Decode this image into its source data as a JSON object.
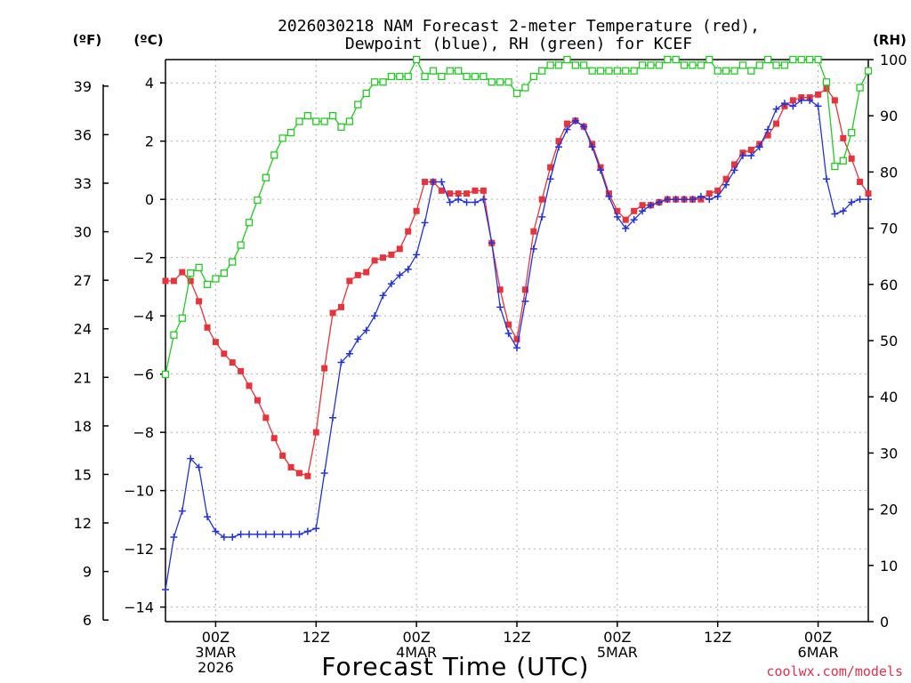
{
  "chart_data": {
    "type": "line",
    "title_lines": [
      "2026030218 NAM Forecast 2-meter Temperature (red),",
      "Dewpoint (blue), RH (green) for KCEF"
    ],
    "units": {
      "fahrenheit": "(ºF)",
      "celsius": "(ºC)",
      "rh": "(RH)"
    },
    "xlabel": "Forecast Time (UTC)",
    "credit": "coolwx.com/models",
    "x_unit": "forecast hour",
    "xlim": [
      0,
      84
    ],
    "y_left_celsius": {
      "lim": [
        -14.5,
        4.8
      ],
      "ticks": [
        4,
        2,
        0,
        -2,
        -4,
        -6,
        -8,
        -10,
        -12,
        -14
      ],
      "labels": [
        "4",
        "2",
        "0",
        "−2",
        "−4",
        "−6",
        "−8",
        "−10",
        "−12",
        "−14"
      ]
    },
    "y_left_fahrenheit": {
      "ticks": [
        39,
        36,
        33,
        30,
        27,
        24,
        21,
        18,
        15,
        12,
        9,
        6
      ],
      "labels": [
        "39",
        "36",
        "33",
        "30",
        "27",
        "24",
        "21",
        "18",
        "15",
        "12",
        "9",
        "6"
      ]
    },
    "y_right_rh": {
      "lim": [
        0,
        100
      ],
      "ticks": [
        100,
        90,
        80,
        70,
        60,
        50,
        40,
        30,
        20,
        10,
        0
      ],
      "labels": [
        "100",
        "90",
        "80",
        "70",
        "60",
        "50",
        "40",
        "30",
        "20",
        "10",
        "0"
      ]
    },
    "x_ticks": [
      {
        "hour": 6,
        "lines": [
          "00Z",
          "3MAR",
          "2026"
        ]
      },
      {
        "hour": 18,
        "lines": [
          "12Z"
        ]
      },
      {
        "hour": 30,
        "lines": [
          "00Z",
          "4MAR"
        ]
      },
      {
        "hour": 42,
        "lines": [
          "12Z"
        ]
      },
      {
        "hour": 54,
        "lines": [
          "00Z",
          "5MAR"
        ]
      },
      {
        "hour": 66,
        "lines": [
          "12Z"
        ]
      },
      {
        "hour": 78,
        "lines": [
          "00Z",
          "6MAR"
        ]
      }
    ],
    "grid": true,
    "series": [
      {
        "name": "Temperature",
        "unit": "C",
        "color": "#e8333a",
        "marker": "filled-square",
        "x": [
          0,
          1,
          2,
          3,
          4,
          5,
          6,
          7,
          8,
          9,
          10,
          11,
          12,
          13,
          14,
          15,
          16,
          17,
          18,
          19,
          20,
          21,
          22,
          23,
          24,
          25,
          26,
          27,
          28,
          29,
          30,
          31,
          32,
          33,
          34,
          35,
          36,
          37,
          38,
          39,
          40,
          41,
          42,
          43,
          44,
          45,
          46,
          47,
          48,
          49,
          50,
          51,
          52,
          53,
          54,
          55,
          56,
          57,
          58,
          59,
          60,
          61,
          62,
          63,
          64,
          65,
          66,
          67,
          68,
          69,
          70,
          71,
          72,
          73,
          74,
          75,
          76,
          77,
          78,
          79,
          80,
          81,
          82,
          83,
          84
        ],
        "values": [
          -2.8,
          -2.8,
          -2.5,
          -2.8,
          -3.5,
          -4.4,
          -4.9,
          -5.3,
          -5.6,
          -5.9,
          -6.4,
          -6.9,
          -7.5,
          -8.2,
          -8.8,
          -9.2,
          -9.4,
          -9.5,
          -8.0,
          -5.8,
          -3.9,
          -3.7,
          -2.8,
          -2.6,
          -2.5,
          -2.1,
          -2.0,
          -1.9,
          -1.7,
          -1.1,
          -0.4,
          0.6,
          0.6,
          0.3,
          0.2,
          0.2,
          0.2,
          0.3,
          0.3,
          -1.5,
          -3.1,
          -4.3,
          -4.8,
          -3.1,
          -1.1,
          0.0,
          1.1,
          2.0,
          2.6,
          2.7,
          2.5,
          1.9,
          1.1,
          0.2,
          -0.4,
          -0.7,
          -0.4,
          -0.2,
          -0.2,
          -0.1,
          0.0,
          0.0,
          0.0,
          0.0,
          0.0,
          0.2,
          0.3,
          0.7,
          1.2,
          1.6,
          1.7,
          1.9,
          2.2,
          2.6,
          3.2,
          3.4,
          3.5,
          3.5,
          3.6,
          3.8,
          3.4,
          2.1,
          1.4,
          0.6,
          0.2
        ]
      },
      {
        "name": "Dewpoint",
        "unit": "C",
        "color": "#2233dd",
        "marker": "plus",
        "x": [
          0,
          1,
          2,
          3,
          4,
          5,
          6,
          7,
          8,
          9,
          10,
          11,
          12,
          13,
          14,
          15,
          16,
          17,
          18,
          19,
          20,
          21,
          22,
          23,
          24,
          25,
          26,
          27,
          28,
          29,
          30,
          31,
          32,
          33,
          34,
          35,
          36,
          37,
          38,
          39,
          40,
          41,
          42,
          43,
          44,
          45,
          46,
          47,
          48,
          49,
          50,
          51,
          52,
          53,
          54,
          55,
          56,
          57,
          58,
          59,
          60,
          61,
          62,
          63,
          64,
          65,
          66,
          67,
          68,
          69,
          70,
          71,
          72,
          73,
          74,
          75,
          76,
          77,
          78,
          79,
          80,
          81,
          82,
          83,
          84
        ],
        "values": [
          -13.4,
          -11.6,
          -10.7,
          -8.9,
          -9.2,
          -10.9,
          -11.4,
          -11.6,
          -11.6,
          -11.5,
          -11.5,
          -11.5,
          -11.5,
          -11.5,
          -11.5,
          -11.5,
          -11.5,
          -11.4,
          -11.3,
          -9.4,
          -7.5,
          -5.6,
          -5.3,
          -4.8,
          -4.5,
          -4.0,
          -3.3,
          -2.9,
          -2.6,
          -2.4,
          -1.9,
          -0.8,
          0.6,
          0.6,
          -0.1,
          0.0,
          -0.1,
          -0.1,
          0.0,
          -1.5,
          -3.7,
          -4.6,
          -5.1,
          -3.5,
          -1.7,
          -0.6,
          0.7,
          1.8,
          2.4,
          2.7,
          2.5,
          1.8,
          1.0,
          0.1,
          -0.6,
          -1.0,
          -0.7,
          -0.4,
          -0.2,
          -0.1,
          0.0,
          0.0,
          0.0,
          0.0,
          0.1,
          0.0,
          0.1,
          0.5,
          1.0,
          1.5,
          1.5,
          1.8,
          2.4,
          3.1,
          3.3,
          3.2,
          3.4,
          3.4,
          3.2,
          0.7,
          -0.5,
          -0.4,
          -0.1,
          0.0,
          0.0
        ]
      },
      {
        "name": "RH",
        "unit": "%",
        "color": "#22cc22",
        "marker": "open-square",
        "x": [
          0,
          1,
          2,
          3,
          4,
          5,
          6,
          7,
          8,
          9,
          10,
          11,
          12,
          13,
          14,
          15,
          16,
          17,
          18,
          19,
          20,
          21,
          22,
          23,
          24,
          25,
          26,
          27,
          28,
          29,
          30,
          31,
          32,
          33,
          34,
          35,
          36,
          37,
          38,
          39,
          40,
          41,
          42,
          43,
          44,
          45,
          46,
          47,
          48,
          49,
          50,
          51,
          52,
          53,
          54,
          55,
          56,
          57,
          58,
          59,
          60,
          61,
          62,
          63,
          64,
          65,
          66,
          67,
          68,
          69,
          70,
          71,
          72,
          73,
          74,
          75,
          76,
          77,
          78,
          79,
          80,
          81,
          82,
          83,
          84
        ],
        "values": [
          44,
          51,
          54,
          62,
          63,
          60,
          61,
          62,
          64,
          67,
          71,
          75,
          79,
          83,
          86,
          87,
          89,
          90,
          89,
          89,
          90,
          88,
          89,
          92,
          94,
          96,
          96,
          97,
          97,
          97,
          100,
          97,
          98,
          97,
          98,
          98,
          97,
          97,
          97,
          96,
          96,
          96,
          94,
          95,
          97,
          98,
          99,
          99,
          100,
          99,
          99,
          98,
          98,
          98,
          98,
          98,
          98,
          99,
          99,
          99,
          100,
          100,
          99,
          99,
          99,
          100,
          98,
          98,
          98,
          99,
          98,
          99,
          100,
          99,
          99,
          100,
          100,
          100,
          100,
          96,
          81,
          82,
          87,
          95,
          98
        ]
      }
    ]
  }
}
